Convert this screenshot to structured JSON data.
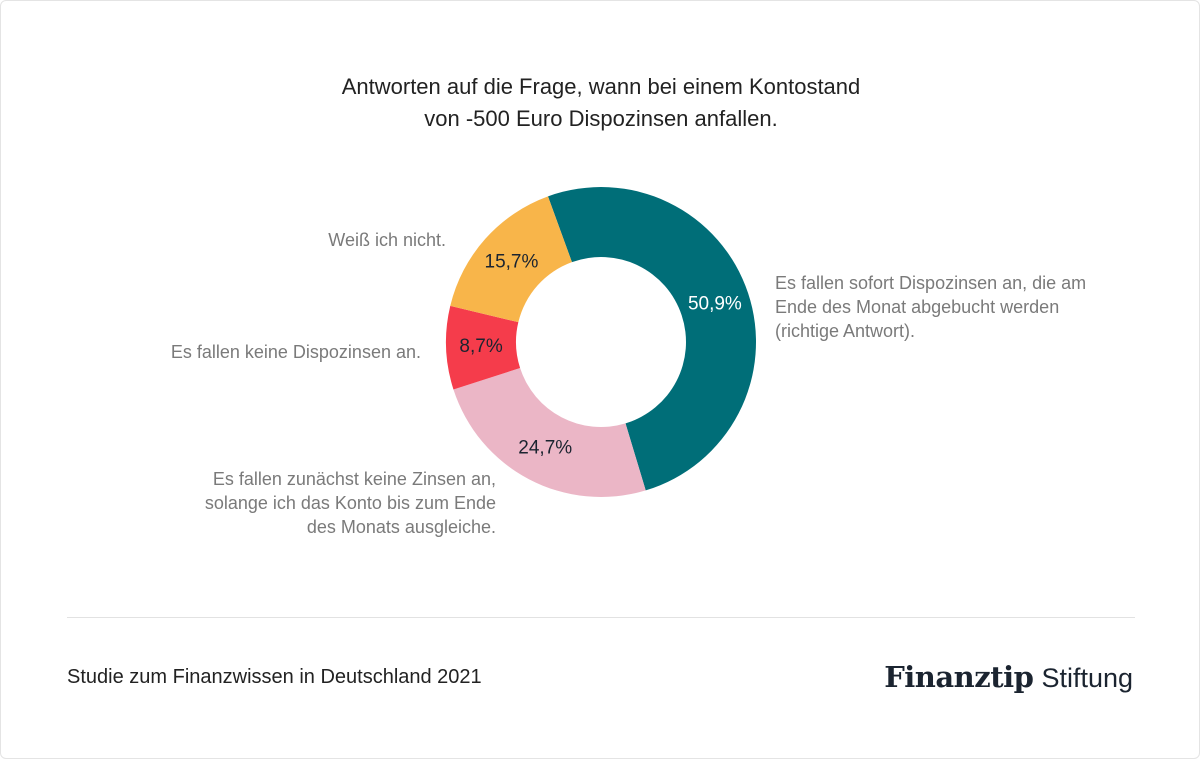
{
  "title": {
    "line1": "Antworten auf die Frage, wann bei einem Kontostand",
    "line2": "von -500 Euro Dispozinsen anfallen."
  },
  "chart_data": {
    "type": "pie",
    "variant": "donut",
    "title": "Antworten auf die Frage, wann bei einem Kontostand von -500 Euro Dispozinsen anfallen.",
    "slices": [
      {
        "label": "Es fallen sofort Dispozinsen an, die am\nEnde des Monat abgebucht werden\n(richtige Antwort).",
        "value": 50.9,
        "value_label": "50,9%",
        "color": "#006e78",
        "value_label_color": "#ffffff"
      },
      {
        "label": "Es fallen zunächst keine Zinsen an,\nsolange ich das Konto bis zum Ende\ndes Monats ausgleiche.",
        "value": 24.7,
        "value_label": "24,7%",
        "color": "#ebb6c6",
        "value_label_color": "#1b2430"
      },
      {
        "label": "Es fallen keine Dispozinsen an.",
        "value": 8.7,
        "value_label": "8,7%",
        "color": "#f53c4b",
        "value_label_color": "#1b2430"
      },
      {
        "label": "Weiß ich nicht.",
        "value": 15.7,
        "value_label": "15,7%",
        "color": "#f8b54a",
        "value_label_color": "#1b2430"
      }
    ]
  },
  "footer": {
    "source": "Studie zum Finanzwissen in Deutschland 2021",
    "brand_bold": "Finanztip",
    "brand_light": "Stiftung"
  }
}
